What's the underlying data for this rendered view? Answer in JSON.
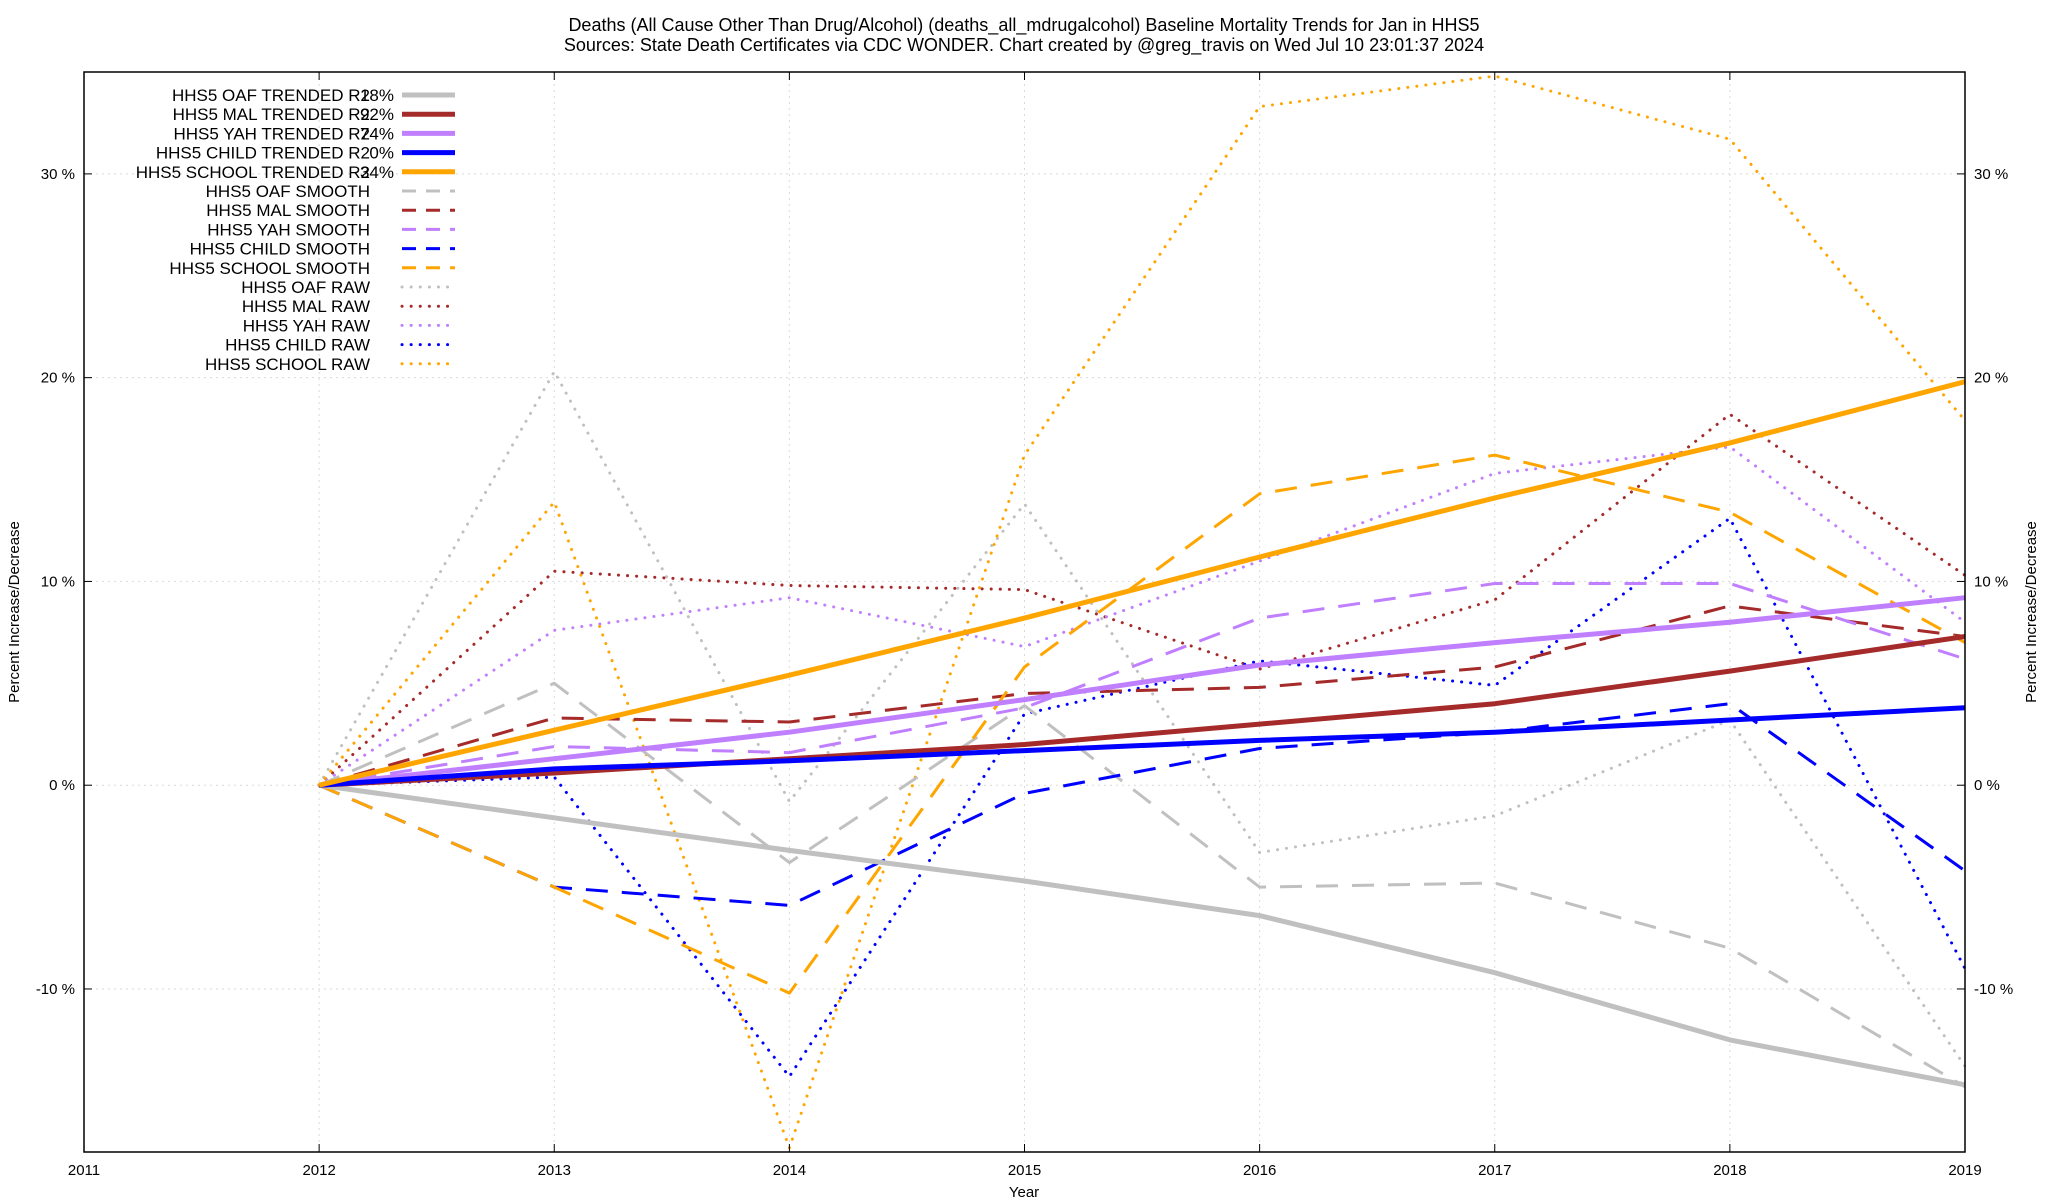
{
  "chart_data": {
    "type": "line",
    "title_line1": "Deaths (All Cause Other Than Drug/Alcohol) (deaths_all_mdrugalcohol)  Baseline Mortality Trends for Jan in HHS5",
    "title_line2": "Sources: State Death Certificates via CDC WONDER.                Chart created by @greg_travis on Wed Jul 10 23:01:37 2024",
    "xlabel": "Year",
    "ylabel_left": "Percent Increase/Decrease",
    "ylabel_right": "Percent Increase/Decrease",
    "xlim": [
      2011,
      2019
    ],
    "ylim": [
      -18,
      35
    ],
    "x_ticks": [
      2011,
      2012,
      2013,
      2014,
      2015,
      2016,
      2017,
      2018,
      2019
    ],
    "x_tick_labels": [
      "2011",
      "2012",
      "2013",
      "2014",
      "2015",
      "2016",
      "2017",
      "2018",
      "2019"
    ],
    "y_ticks": [
      -10,
      0,
      10,
      20,
      30
    ],
    "y_tick_labels": [
      "-10 %",
      "0 %",
      "10 %",
      "20 %",
      "30 %"
    ],
    "grid": true,
    "legend_position": "top-left",
    "x": [
      2012,
      2013,
      2014,
      2015,
      2016,
      2017,
      2018,
      2019
    ],
    "series": [
      {
        "name": "HHS5 OAF TRENDED",
        "r2": "18%",
        "style": "solid",
        "color": "#c0c0c0",
        "values": [
          0,
          -1.6,
          -3.2,
          -4.7,
          -6.4,
          -9.2,
          -12.5,
          -14.7
        ]
      },
      {
        "name": "HHS5 MAL TRENDED",
        "r2": "92%",
        "style": "solid",
        "color": "#a52a2a",
        "values": [
          0,
          0.6,
          1.3,
          2.0,
          3.0,
          4.0,
          5.6,
          7.3
        ]
      },
      {
        "name": "HHS5 YAH TRENDED",
        "r2": "74%",
        "style": "solid",
        "color": "#bf7fff",
        "values": [
          0,
          1.3,
          2.6,
          4.2,
          5.9,
          7.0,
          8.0,
          9.2
        ]
      },
      {
        "name": "HHS5 CHILD TRENDED",
        "r2": "0%",
        "style": "solid",
        "color": "#0000ff",
        "values": [
          0,
          0.8,
          1.2,
          1.7,
          2.2,
          2.6,
          3.2,
          3.8
        ]
      },
      {
        "name": "HHS5 SCHOOL TRENDED",
        "r2": "34%",
        "style": "solid",
        "color": "#ffa500",
        "values": [
          0,
          2.7,
          5.4,
          8.2,
          11.2,
          14.1,
          16.8,
          19.8
        ]
      },
      {
        "name": "HHS5 OAF SMOOTH",
        "r2": "",
        "style": "dash",
        "color": "#c0c0c0",
        "values": [
          0,
          5.0,
          -3.8,
          3.9,
          -5.0,
          -4.8,
          -8.0,
          -14.8
        ]
      },
      {
        "name": "HHS5 MAL SMOOTH",
        "r2": "",
        "style": "dash",
        "color": "#a52a2a",
        "values": [
          0,
          3.3,
          3.1,
          4.5,
          4.8,
          5.8,
          8.8,
          7.3
        ]
      },
      {
        "name": "HHS5 YAH SMOOTH",
        "r2": "",
        "style": "dash",
        "color": "#bf7fff",
        "values": [
          0,
          1.9,
          1.6,
          3.8,
          8.2,
          9.9,
          9.9,
          6.2
        ]
      },
      {
        "name": "HHS5 CHILD SMOOTH",
        "r2": "",
        "style": "dash",
        "color": "#0000ff",
        "values": [
          0,
          -5.0,
          -5.9,
          -0.4,
          1.8,
          2.6,
          4.0,
          -4.2
        ]
      },
      {
        "name": "HHS5 SCHOOL SMOOTH",
        "r2": "",
        "style": "dash",
        "color": "#ffa500",
        "values": [
          0,
          -5.0,
          -10.2,
          5.8,
          14.3,
          16.2,
          13.4,
          7.0
        ]
      },
      {
        "name": "HHS5 OAF RAW",
        "r2": "",
        "style": "dot",
        "color": "#c0c0c0",
        "values": [
          0,
          20.3,
          -0.8,
          13.8,
          -3.3,
          -1.5,
          3.2,
          -13.8
        ]
      },
      {
        "name": "HHS5 MAL RAW",
        "r2": "",
        "style": "dot",
        "color": "#a52a2a",
        "values": [
          0,
          10.5,
          9.8,
          9.6,
          5.7,
          9.1,
          18.2,
          10.3
        ]
      },
      {
        "name": "HHS5 YAH RAW",
        "r2": "",
        "style": "dot",
        "color": "#bf7fff",
        "values": [
          0,
          7.6,
          9.2,
          6.8,
          11.0,
          15.3,
          16.6,
          8.0
        ]
      },
      {
        "name": "HHS5 CHILD RAW",
        "r2": "",
        "style": "dot",
        "color": "#0000ff",
        "values": [
          0,
          0.4,
          -14.3,
          3.5,
          6.1,
          4.9,
          13.1,
          -9.0
        ]
      },
      {
        "name": "HHS5 SCHOOL RAW",
        "r2": "",
        "style": "dot",
        "color": "#ffa500",
        "values": [
          0,
          13.9,
          -17.8,
          16.2,
          33.3,
          34.8,
          31.7,
          17.9
        ]
      }
    ]
  }
}
